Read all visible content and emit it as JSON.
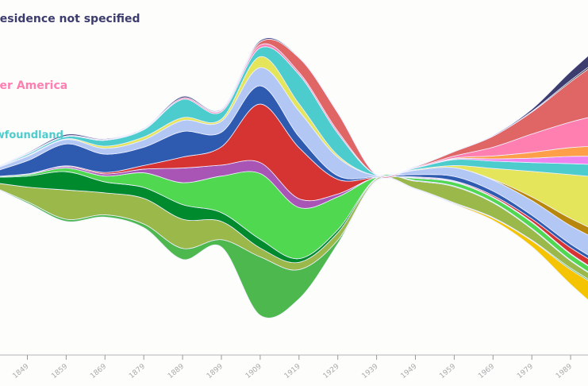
{
  "chart_data": {
    "type": "area",
    "subtype": "streamgraph",
    "title": "",
    "xlabel": "",
    "ylabel": "",
    "x": [
      1839,
      1849,
      1859,
      1869,
      1879,
      1889,
      1899,
      1909,
      1919,
      1929,
      1939,
      1949,
      1959,
      1969,
      1979,
      1989,
      1999
    ],
    "tick_labels": [
      "1849",
      "1859",
      "1869",
      "1879",
      "1889",
      "1899",
      "1909",
      "1919",
      "1929",
      "1939",
      "1949",
      "1959",
      "1969",
      "1979",
      "1989"
    ],
    "grid": false,
    "y_axis_shown": false,
    "series": [
      {
        "color": "#f5c400",
        "values": [
          0,
          0,
          0,
          0,
          0,
          0,
          0,
          0,
          0,
          0,
          0,
          0,
          1,
          3,
          8,
          20,
          35
        ]
      },
      {
        "color": "#4db84d",
        "values": [
          0,
          2,
          3,
          3,
          5,
          15,
          10,
          80,
          40,
          5,
          1,
          1,
          1,
          1,
          1,
          2,
          2
        ]
      },
      {
        "color": "#9ab94a",
        "values": [
          4,
          20,
          40,
          30,
          35,
          40,
          25,
          12,
          10,
          10,
          2,
          10,
          22,
          20,
          15,
          10,
          8
        ]
      },
      {
        "color": "#008a2e",
        "values": [
          6,
          15,
          25,
          15,
          15,
          20,
          12,
          12,
          5,
          4,
          1,
          1,
          1,
          1,
          1,
          1,
          1
        ]
      },
      {
        "color": "#50d850",
        "values": [
          1,
          2,
          5,
          8,
          20,
          30,
          50,
          90,
          70,
          45,
          1,
          3,
          5,
          6,
          8,
          8,
          8
        ]
      },
      {
        "color": "#a855b5",
        "values": [
          0,
          1,
          2,
          3,
          5,
          20,
          15,
          15,
          12,
          4,
          0,
          1,
          1,
          1,
          1,
          1,
          1
        ]
      },
      {
        "color": "#d63333",
        "values": [
          0,
          0,
          1,
          2,
          5,
          15,
          25,
          80,
          70,
          20,
          0,
          1,
          1,
          2,
          4,
          8,
          10
        ]
      },
      {
        "color": "#2e5ab0",
        "values": [
          5,
          18,
          30,
          25,
          25,
          35,
          20,
          25,
          15,
          5,
          1,
          3,
          6,
          6,
          5,
          5,
          5
        ]
      },
      {
        "color": "#b3c7f5",
        "values": [
          3,
          6,
          6,
          8,
          10,
          15,
          15,
          25,
          35,
          25,
          1,
          6,
          12,
          15,
          20,
          25,
          30
        ]
      },
      {
        "color": "#b8860b",
        "values": [
          0,
          0,
          0,
          0,
          0,
          0,
          0,
          0,
          0,
          0,
          0,
          0,
          0,
          1,
          5,
          10,
          12
        ]
      },
      {
        "color": "#e5e55c",
        "values": [
          0,
          1,
          1,
          3,
          4,
          4,
          3,
          15,
          10,
          3,
          0,
          1,
          3,
          15,
          35,
          60,
          80
        ]
      },
      {
        "color": "#4ccccc",
        "values": [
          0,
          2,
          3,
          8,
          10,
          25,
          10,
          12,
          40,
          30,
          1,
          2,
          8,
          10,
          12,
          15,
          18
        ]
      },
      {
        "color": "#ee82ee",
        "values": [
          0,
          0,
          0,
          0,
          0,
          0,
          0,
          0,
          0,
          0,
          0,
          0,
          1,
          3,
          6,
          10,
          12
        ]
      },
      {
        "color": "#ff9f4a",
        "values": [
          0,
          0,
          0,
          0,
          0,
          0,
          0,
          0,
          0,
          0,
          0,
          0,
          1,
          4,
          8,
          12,
          15
        ]
      },
      {
        "color": "#ff7fb0",
        "values": [
          0,
          1,
          1,
          1,
          1,
          2,
          2,
          4,
          3,
          3,
          0,
          1,
          3,
          12,
          25,
          35,
          45
        ]
      },
      {
        "color": "#e06666",
        "values": [
          0,
          0,
          0,
          0,
          0,
          0,
          1,
          4,
          20,
          25,
          0,
          1,
          6,
          15,
          30,
          55,
          80
        ]
      },
      {
        "color": "#222222",
        "values": [
          0,
          0,
          0,
          0,
          0,
          0,
          0,
          0,
          0,
          0,
          0,
          0,
          0,
          0,
          1,
          2,
          3
        ]
      },
      {
        "color": "#3c3c6e",
        "values": [
          0,
          1,
          2,
          1,
          1,
          2,
          1,
          2,
          1,
          1,
          0,
          0,
          0,
          1,
          3,
          12,
          20
        ]
      }
    ],
    "annotations": [
      {
        "text": "Residence not specified",
        "color": "#3c3c6e"
      },
      {
        "text": "Other America",
        "color": "#ff7fb0"
      },
      {
        "text": "Newfoundland",
        "color": "#4ccccc"
      }
    ]
  }
}
